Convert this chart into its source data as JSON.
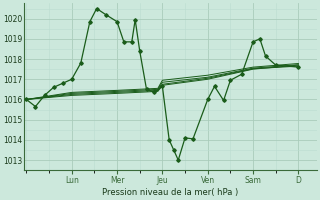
{
  "background_color": "#cce8dc",
  "grid_major_color": "#aaccbb",
  "grid_minor_color": "#bbddd0",
  "line_color": "#1a5c1a",
  "title": "Pression niveau de la mer( hPa )",
  "ylim": [
    1012.5,
    1020.75
  ],
  "yticks": [
    1013,
    1014,
    1015,
    1016,
    1017,
    1018,
    1019,
    1020
  ],
  "day_labels": [
    "Lun",
    "Mer",
    "Jeu",
    "Ven",
    "Sam",
    "D"
  ],
  "day_positions": [
    2.0,
    4.0,
    6.0,
    8.0,
    10.0,
    12.0
  ],
  "xlim": [
    -0.1,
    12.8
  ],
  "series": [
    [
      0,
      1016.0,
      0.4,
      1015.65,
      0.8,
      1016.2,
      1.2,
      1016.6,
      1.6,
      1016.8,
      2.0,
      1017.0,
      2.4,
      1017.8,
      2.8,
      1019.85,
      3.1,
      1020.5,
      3.5,
      1020.2,
      4.0,
      1019.85,
      4.3,
      1018.85,
      4.65,
      1018.85,
      4.8,
      1019.95,
      5.0,
      1018.4,
      5.3,
      1016.5,
      5.65,
      1016.35,
      6.0,
      1016.65,
      6.3,
      1014.0,
      6.5,
      1013.5,
      6.7,
      1013.0,
      7.0,
      1014.1,
      7.35,
      1014.05,
      8.0,
      1016.0,
      8.3,
      1016.65,
      8.7,
      1015.95,
      9.0,
      1016.95,
      9.5,
      1017.25,
      10.0,
      1018.85,
      10.3,
      1019.0,
      10.55,
      1018.15,
      11.0,
      1017.7,
      12.0,
      1017.6
    ],
    [
      0,
      1016.0,
      2.0,
      1016.2,
      4.0,
      1016.3,
      5.8,
      1016.4,
      6.0,
      1016.7,
      8.0,
      1017.0,
      10.0,
      1017.5,
      12.0,
      1017.7
    ],
    [
      0,
      1016.0,
      2.0,
      1016.25,
      4.0,
      1016.35,
      5.8,
      1016.45,
      6.0,
      1016.75,
      8.0,
      1017.05,
      10.0,
      1017.52,
      12.0,
      1017.65
    ],
    [
      0,
      1016.0,
      2.0,
      1016.3,
      4.0,
      1016.4,
      5.8,
      1016.5,
      6.0,
      1016.85,
      8.0,
      1017.1,
      10.0,
      1017.55,
      12.0,
      1017.72
    ],
    [
      0,
      1016.0,
      2.0,
      1016.35,
      4.0,
      1016.45,
      5.8,
      1016.55,
      6.0,
      1016.95,
      8.0,
      1017.2,
      10.0,
      1017.6,
      12.0,
      1017.78
    ]
  ]
}
